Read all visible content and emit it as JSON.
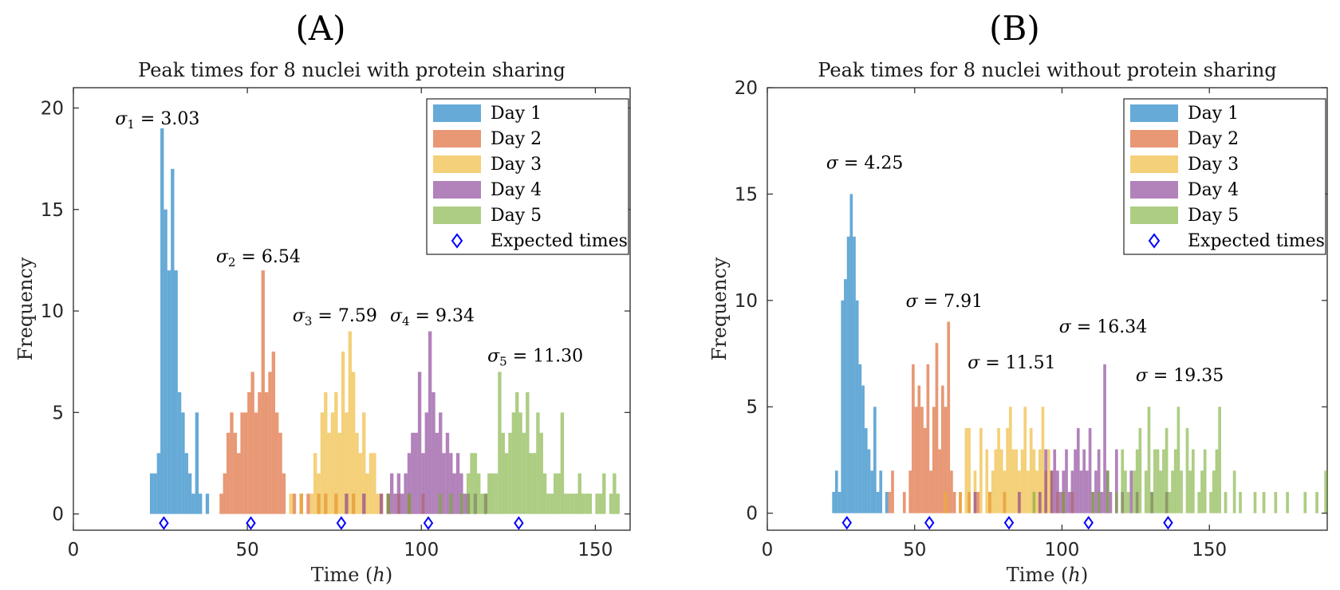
{
  "chart_data": [
    {
      "panel_label": "(A)",
      "type": "bar",
      "title": "Peak times for 8 nuclei with protein sharing",
      "xlabel": "Time (h)",
      "ylabel": "Frequency",
      "xlim": [
        0,
        160
      ],
      "ylim": [
        -0.8,
        21
      ],
      "xticks": [
        0,
        50,
        100,
        150
      ],
      "yticks": [
        0,
        5,
        10,
        15,
        20
      ],
      "grid": false,
      "legend_position": "top-right",
      "legend": [
        "Day 1",
        "Day 2",
        "Day 3",
        "Day 4",
        "Day 5",
        "Expected times"
      ],
      "bin_width": 1,
      "series": [
        {
          "name": "Day 1",
          "color": "#0072BD",
          "x": [
            22,
            23,
            24,
            25,
            26,
            27,
            28,
            29,
            30,
            31,
            32,
            33,
            34,
            35,
            36,
            38
          ],
          "values": [
            2,
            2,
            3,
            19,
            15,
            12,
            17,
            12,
            6,
            5,
            3,
            2,
            1,
            5,
            1,
            1
          ]
        },
        {
          "name": "Day 2",
          "color": "#D95319",
          "x": [
            42,
            43,
            44,
            45,
            46,
            47,
            48,
            49,
            50,
            51,
            52,
            53,
            54,
            55,
            56,
            57,
            58,
            59,
            60,
            63,
            65,
            67,
            70,
            72,
            75,
            80
          ],
          "values": [
            1,
            2,
            4,
            5,
            4,
            3,
            5,
            5,
            6,
            7,
            5,
            6,
            12,
            6,
            7,
            8,
            5,
            4,
            2,
            1,
            1,
            1,
            1,
            1,
            1,
            1
          ]
        },
        {
          "name": "Day 3",
          "color": "#EDB120",
          "x": [
            62,
            65,
            68,
            69,
            70,
            71,
            72,
            73,
            74,
            75,
            76,
            77,
            78,
            79,
            80,
            81,
            82,
            83,
            84,
            85,
            86,
            87,
            88,
            90,
            93,
            96,
            100
          ],
          "values": [
            1,
            1,
            1,
            3,
            2,
            5,
            6,
            4,
            5,
            6,
            4,
            8,
            5,
            9,
            7,
            4,
            3,
            5,
            2,
            3,
            3,
            1,
            1,
            1,
            1,
            1,
            1
          ]
        },
        {
          "name": "Day 4",
          "color": "#7E2F8E",
          "x": [
            78,
            83,
            88,
            90,
            91,
            92,
            93,
            94,
            95,
            96,
            97,
            98,
            99,
            100,
            101,
            102,
            103,
            104,
            105,
            106,
            107,
            108,
            109,
            110,
            111,
            112,
            113,
            115,
            118
          ],
          "values": [
            1,
            1,
            1,
            1,
            2,
            1,
            2,
            1,
            2,
            3,
            4,
            4,
            7,
            3,
            5,
            9,
            6,
            4,
            5,
            3,
            4,
            3,
            2,
            3,
            2,
            1,
            1,
            1,
            1
          ]
        },
        {
          "name": "Day 5",
          "color": "#77AC30",
          "x": [
            90,
            96,
            105,
            108,
            111,
            113,
            114,
            115,
            116,
            117,
            118,
            119,
            120,
            121,
            122,
            123,
            124,
            125,
            126,
            127,
            128,
            129,
            130,
            131,
            132,
            133,
            134,
            135,
            136,
            137,
            138,
            139,
            140,
            141,
            142,
            143,
            144,
            145,
            146,
            147,
            148,
            149,
            150,
            151,
            152,
            153,
            154,
            155,
            156
          ],
          "values": [
            1,
            1,
            1,
            1,
            1,
            2,
            3,
            3,
            2,
            1,
            1,
            2,
            2,
            2,
            7,
            4,
            3,
            4,
            5,
            6,
            5,
            4,
            6,
            3,
            3,
            5,
            4,
            2,
            1,
            1,
            2,
            2,
            5,
            1,
            1,
            1,
            1,
            2,
            1,
            1,
            1,
            0,
            1,
            1,
            2,
            0,
            1,
            2,
            1
          ]
        }
      ],
      "expected_times": [
        26,
        51,
        77,
        102,
        128
      ],
      "annotations": [
        {
          "symbol": "σ",
          "sub": "1",
          "value": "= 3.03",
          "x": 12,
          "y": 19.2
        },
        {
          "symbol": "σ",
          "sub": "2",
          "value": "= 6.54",
          "x": 41,
          "y": 12.4
        },
        {
          "symbol": "σ",
          "sub": "3",
          "value": "= 7.59",
          "x": 63,
          "y": 9.5
        },
        {
          "symbol": "σ",
          "sub": "4",
          "value": "= 9.34",
          "x": 91,
          "y": 9.5
        },
        {
          "symbol": "σ",
          "sub": "5",
          "value": "= 11.30",
          "x": 119,
          "y": 7.5
        }
      ]
    },
    {
      "panel_label": "(B)",
      "type": "bar",
      "title": "Peak times for 8 nuclei without protein sharing",
      "xlabel": "Time (h)",
      "ylabel": "Frequency",
      "xlim": [
        0,
        190
      ],
      "ylim": [
        -0.8,
        20
      ],
      "xticks": [
        0,
        50,
        100,
        150
      ],
      "yticks": [
        0,
        5,
        10,
        15,
        20
      ],
      "grid": false,
      "legend_position": "top-right",
      "legend": [
        "Day 1",
        "Day 2",
        "Day 3",
        "Day 4",
        "Day 5",
        "Expected times"
      ],
      "bin_width": 1,
      "series": [
        {
          "name": "Day 1",
          "color": "#0072BD",
          "x": [
            22,
            23,
            24,
            25,
            26,
            27,
            28,
            29,
            30,
            31,
            32,
            33,
            34,
            35,
            36,
            37,
            38,
            40
          ],
          "values": [
            1,
            2,
            1,
            10,
            11,
            13,
            15,
            13,
            10,
            7,
            6,
            4,
            3,
            2,
            5,
            1,
            2,
            1
          ]
        },
        {
          "name": "Day 2",
          "color": "#D95319",
          "x": [
            41,
            42,
            46,
            48,
            49,
            50,
            51,
            52,
            53,
            54,
            55,
            56,
            57,
            58,
            59,
            60,
            61,
            62,
            63,
            65,
            68,
            71,
            75,
            80
          ],
          "values": [
            1,
            2,
            1,
            2,
            7,
            5,
            6,
            5,
            4,
            7,
            2,
            5,
            8,
            3,
            6,
            5,
            9,
            2,
            1,
            1,
            1,
            1,
            1,
            1
          ]
        },
        {
          "name": "Day 3",
          "color": "#EDB120",
          "x": [
            60,
            65,
            67,
            68,
            70,
            72,
            74,
            75,
            76,
            77,
            78,
            79,
            80,
            81,
            82,
            83,
            84,
            85,
            86,
            87,
            88,
            89,
            90,
            91,
            92,
            93,
            94,
            95,
            96,
            98,
            100,
            103
          ],
          "values": [
            1,
            1,
            4,
            4,
            2,
            4,
            3,
            1,
            2,
            3,
            4,
            3,
            2,
            4,
            5,
            3,
            3,
            2,
            3,
            5,
            2,
            4,
            3,
            2,
            3,
            5,
            2,
            3,
            2,
            1,
            1,
            1
          ]
        },
        {
          "name": "Day 4",
          "color": "#7E2F8E",
          "x": [
            70,
            85,
            92,
            94,
            96,
            97,
            98,
            99,
            100,
            101,
            102,
            103,
            104,
            105,
            106,
            107,
            108,
            109,
            110,
            111,
            112,
            113,
            114,
            115,
            116,
            118,
            120,
            123,
            125,
            130,
            135
          ],
          "values": [
            1,
            1,
            1,
            3,
            2,
            3,
            2,
            1,
            2,
            3,
            1,
            2,
            3,
            4,
            2,
            3,
            2,
            4,
            1,
            2,
            3,
            1,
            7,
            2,
            1,
            3,
            1,
            2,
            1,
            1,
            1
          ]
        },
        {
          "name": "Day 5",
          "color": "#77AC30",
          "x": [
            90,
            100,
            110,
            112,
            115,
            118,
            120,
            121,
            122,
            124,
            125,
            126,
            128,
            129,
            130,
            131,
            132,
            133,
            134,
            135,
            136,
            137,
            138,
            139,
            140,
            142,
            143,
            144,
            146,
            147,
            148,
            150,
            151,
            152,
            153,
            155,
            158,
            160,
            165,
            168,
            172,
            176,
            182,
            186,
            189
          ],
          "values": [
            1,
            1,
            1,
            1,
            2,
            1,
            3,
            2,
            1,
            2,
            3,
            4,
            2,
            5,
            1,
            3,
            3,
            2,
            3,
            4,
            1,
            2,
            3,
            5,
            2,
            4,
            2,
            3,
            1,
            2,
            3,
            1,
            2,
            3,
            5,
            1,
            2,
            1,
            1,
            1,
            1,
            1,
            1,
            1,
            2
          ]
        }
      ],
      "expected_times": [
        27,
        55,
        82,
        109,
        136
      ],
      "annotations": [
        {
          "symbol": "σ",
          "value": "= 4.25",
          "x": 20,
          "y": 16.2
        },
        {
          "symbol": "σ",
          "value": "= 7.91",
          "x": 47,
          "y": 9.7
        },
        {
          "symbol": "σ",
          "value": "= 11.51",
          "x": 68,
          "y": 6.8
        },
        {
          "symbol": "σ",
          "value": "= 16.34",
          "x": 99,
          "y": 8.5
        },
        {
          "symbol": "σ",
          "value": "= 19.35",
          "x": 125,
          "y": 6.2
        }
      ]
    }
  ]
}
